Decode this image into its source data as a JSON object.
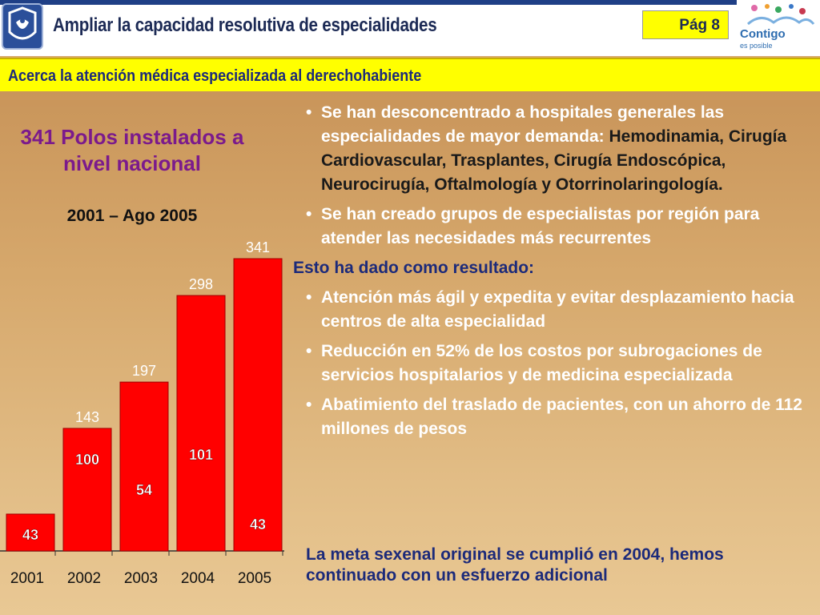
{
  "header": {
    "title": "Ampliar la capacidad resolutiva de especialidades",
    "page": "Pág 8",
    "brand_name": "Contigo",
    "brand_tagline": "es posible"
  },
  "subheader": "Acerca la atención médica especializada al derechohabiente",
  "left_panel": {
    "title": "341 Polos instalados a nivel nacional",
    "subtitle": "2001 – Ago 2005"
  },
  "bullets": {
    "b1_text": "Se han desconcentrado a hospitales generales las especialidades de mayor demanda: ",
    "b1_highlight": "Hemodinamia, Cirugía Cardiovascular, Trasplantes, Cirugía Endoscópica, Neurocirugía, Oftalmología y Otorrinolaringología.",
    "b2": "Se han creado grupos de especialistas por región para atender las necesidades más recurrentes",
    "result_label": "Esto ha dado como resultado:",
    "r1": "Atención más ágil y expedita y evitar desplazamiento hacia centros de alta especialidad",
    "r2": "Reducción en 52% de los costos por subrogaciones de servicios hospitalarios y de medicina especializada",
    "r3": "Abatimiento del traslado de pacientes, con un ahorro de 112 millones de pesos"
  },
  "conclusion": "La meta sexenal original se cumplió en 2004, hemos continuado con un esfuerzo adicional",
  "colors": {
    "bar": "#ff0000",
    "accent_yellow": "#ffff00",
    "navy": "#1c2a7a",
    "purple": "#7b1a8c"
  },
  "chart_data": {
    "type": "bar",
    "categories": [
      "2001",
      "2002",
      "2003",
      "2004",
      "2005"
    ],
    "values": [
      43,
      143,
      197,
      298,
      341
    ],
    "inner_labels": [
      "43",
      "100",
      "54",
      "101",
      "43"
    ],
    "top_labels": [
      "",
      "143",
      "197",
      "298",
      "341"
    ],
    "title": "341 Polos instalados a nivel nacional",
    "subtitle": "2001 – Ago 2005",
    "ylim": [
      0,
      341
    ],
    "grid": false
  }
}
